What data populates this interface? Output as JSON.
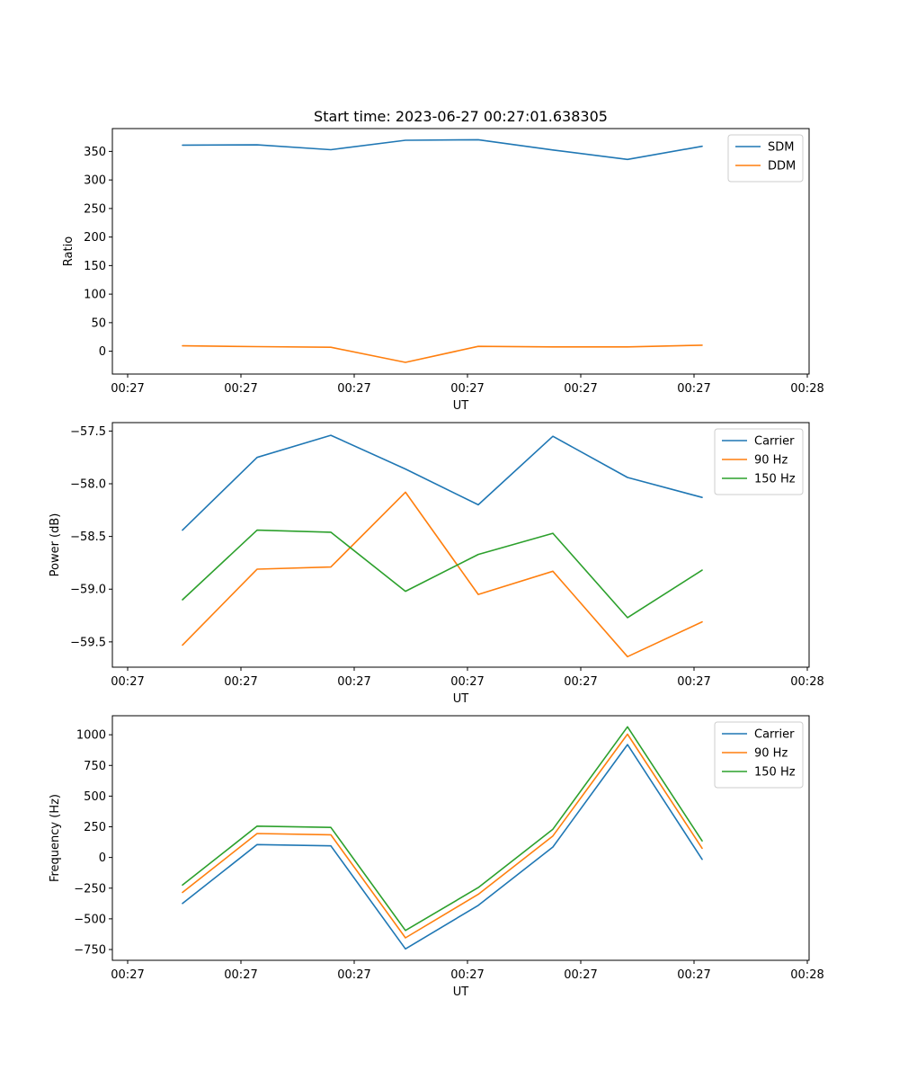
{
  "colors": {
    "c0": "#1f77b4",
    "c1": "#ff7f0e",
    "c2": "#2ca02c"
  },
  "chart_data": [
    {
      "type": "line",
      "title": "Start time: 2023-06-27 00:27:01.638305",
      "xlabel": "UT",
      "ylabel": "Ratio",
      "x_tick_labels": [
        "00:27",
        "00:27",
        "00:27",
        "00:27",
        "00:27",
        "00:27",
        "00:28"
      ],
      "ylim": [
        -40,
        390
      ],
      "y_ticks": [
        0,
        50,
        100,
        150,
        200,
        250,
        300,
        350
      ],
      "legend": "upper-right",
      "series": [
        {
          "name": "SDM",
          "color": "#1f77b4",
          "values": [
            361,
            361.5,
            353,
            369.5,
            370.5,
            352.5,
            336,
            359
          ]
        },
        {
          "name": "DDM",
          "color": "#ff7f0e",
          "values": [
            9.5,
            8,
            7,
            -19.5,
            8.5,
            7.5,
            7.5,
            10.5
          ]
        }
      ]
    },
    {
      "type": "line",
      "title": "",
      "xlabel": "UT",
      "ylabel": "Power (dB)",
      "x_tick_labels": [
        "00:27",
        "00:27",
        "00:27",
        "00:27",
        "00:27",
        "00:27",
        "00:28"
      ],
      "ylim": [
        -59.74,
        -57.42
      ],
      "y_ticks": [
        -59.5,
        -59.0,
        -58.5,
        -58.0,
        -57.5
      ],
      "y_tick_labels": [
        "−59.5",
        "−59.0",
        "−58.5",
        "−58.0",
        "−57.5"
      ],
      "legend": "upper-right",
      "series": [
        {
          "name": "Carrier",
          "color": "#1f77b4",
          "values": [
            -58.44,
            -57.75,
            -57.54,
            -57.86,
            -58.2,
            -57.55,
            -57.94,
            -58.13
          ]
        },
        {
          "name": "90 Hz",
          "color": "#ff7f0e",
          "values": [
            -59.53,
            -58.81,
            -58.79,
            -58.08,
            -59.05,
            -58.83,
            -59.64,
            -59.31
          ]
        },
        {
          "name": "150 Hz",
          "color": "#2ca02c",
          "values": [
            -59.1,
            -58.44,
            -58.46,
            -59.02,
            -58.67,
            -58.47,
            -59.27,
            -58.82
          ]
        }
      ]
    },
    {
      "type": "line",
      "title": "",
      "xlabel": "UT",
      "ylabel": "Frequency (Hz)",
      "x_tick_labels": [
        "00:27",
        "00:27",
        "00:27",
        "00:27",
        "00:27",
        "00:27",
        "00:28"
      ],
      "ylim": [
        -838,
        1155
      ],
      "y_ticks": [
        -750,
        -500,
        -250,
        0,
        250,
        500,
        750,
        1000
      ],
      "y_tick_labels": [
        "−750",
        "−500",
        "−250",
        "0",
        "250",
        "500",
        "750",
        "1000"
      ],
      "legend": "upper-right",
      "series": [
        {
          "name": "Carrier",
          "color": "#1f77b4",
          "values": [
            -375,
            105,
            95,
            -745,
            -390,
            85,
            920,
            -15
          ]
        },
        {
          "name": "90 Hz",
          "color": "#ff7f0e",
          "values": [
            -285,
            195,
            185,
            -655,
            -300,
            175,
            1005,
            75
          ]
        },
        {
          "name": "150 Hz",
          "color": "#2ca02c",
          "values": [
            -225,
            255,
            245,
            -595,
            -245,
            230,
            1065,
            135
          ]
        }
      ]
    }
  ]
}
